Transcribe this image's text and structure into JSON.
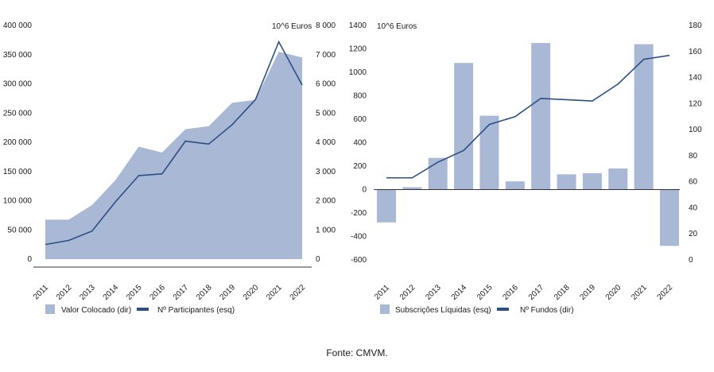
{
  "source": "Fonte: CMVM.",
  "colors": {
    "area": "#a9b8d4",
    "bar": "#a9b8d4",
    "line": "#2c4f86",
    "axis": "#333333",
    "text": "#1a1a1a"
  },
  "chart_data": [
    {
      "type": "area",
      "categories": [
        "2011",
        "2012",
        "2013",
        "2014",
        "2015",
        "2016",
        "2017",
        "2018",
        "2019",
        "2020",
        "2021",
        "2022"
      ],
      "unit_label": "10^6 Euros",
      "left_axis": {
        "ylim": [
          0,
          400000
        ],
        "ticks": [
          "0",
          "50 000",
          "100 000",
          "150 000",
          "200 000",
          "250 000",
          "300 000",
          "350 000",
          "400 000"
        ]
      },
      "right_axis": {
        "ylim": [
          0,
          8000
        ],
        "ticks": [
          "0",
          "1 000",
          "2 000",
          "3 000",
          "4 000",
          "5 000",
          "6 000",
          "7 000",
          "8 000"
        ]
      },
      "series": [
        {
          "name": "Valor Colocado (dir)",
          "type": "area",
          "axis": "right",
          "values": [
            1350,
            1350,
            1850,
            2700,
            3850,
            3650,
            4450,
            4550,
            5350,
            5450,
            7100,
            6900
          ]
        },
        {
          "name": "Nº Participantes (esq)",
          "type": "line",
          "axis": "left",
          "values": [
            25000,
            32000,
            48000,
            98000,
            143000,
            146000,
            202000,
            197000,
            230000,
            273000,
            372000,
            298000
          ]
        }
      ],
      "legend_position": "bottom"
    },
    {
      "type": "bar",
      "categories": [
        "2011",
        "2012",
        "2013",
        "2014",
        "2015",
        "2016",
        "2017",
        "2018",
        "2019",
        "2020",
        "2021",
        "2022"
      ],
      "unit_label": "10^6 Euros",
      "left_axis": {
        "ylim": [
          -600,
          1400
        ],
        "ticks": [
          "-600",
          "-400",
          "-200",
          "0",
          "200",
          "400",
          "600",
          "800",
          "1000",
          "1200",
          "1400"
        ]
      },
      "right_axis": {
        "ylim": [
          0,
          180
        ],
        "ticks": [
          "0",
          "20",
          "40",
          "60",
          "80",
          "100",
          "120",
          "140",
          "160",
          "180"
        ]
      },
      "series": [
        {
          "name": "Subscrições Líquidas (esq)",
          "type": "bar",
          "axis": "left",
          "values": [
            -280,
            20,
            270,
            1080,
            630,
            70,
            1250,
            130,
            140,
            180,
            1240,
            -480
          ]
        },
        {
          "name": "Nº Fundos (dir)",
          "type": "line",
          "axis": "right",
          "values": [
            63,
            63,
            75,
            84,
            104,
            110,
            124,
            123,
            122,
            135,
            154,
            157
          ]
        }
      ],
      "legend_position": "bottom"
    }
  ]
}
